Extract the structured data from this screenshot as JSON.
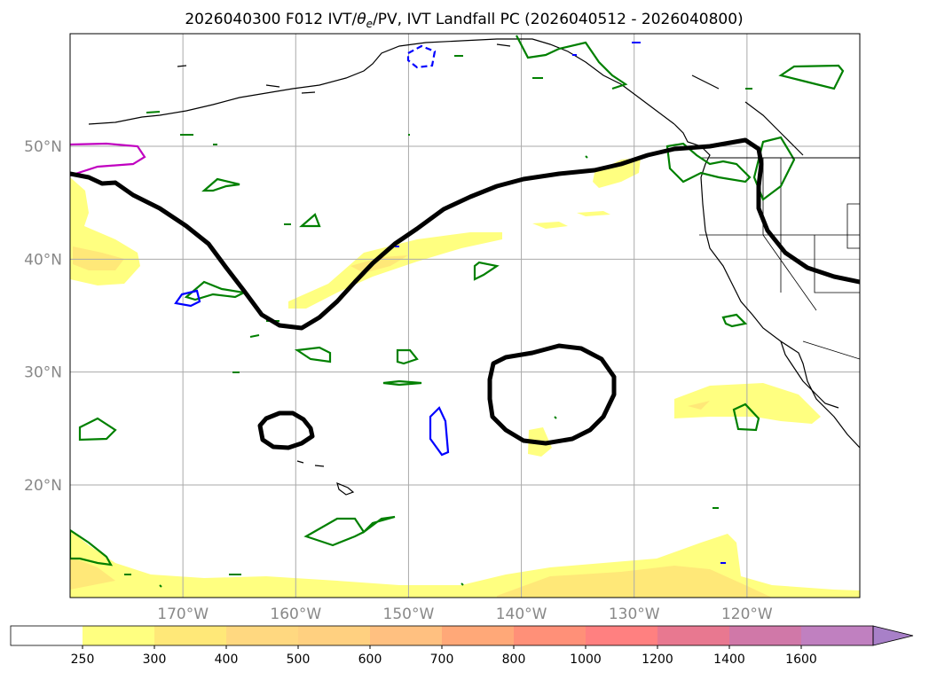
{
  "title": "2026040300 F012 IVT/θe/PV, IVT Landfall PC (2026040512 - 2026040800)",
  "title_parts": {
    "prefix": "2026040300 F012 IVT/",
    "theta": "θ",
    "sub": "e",
    "suffix": "/PV, IVT Landfall PC (2026040512 - 2026040800)"
  },
  "map": {
    "lon_range": [
      -180,
      -110
    ],
    "lat_range": [
      10,
      60
    ],
    "lat_labels": [
      {
        "lat": 50,
        "text": "50°N"
      },
      {
        "lat": 40,
        "text": "40°N"
      },
      {
        "lat": 30,
        "text": "30°N"
      },
      {
        "lat": 20,
        "text": "20°N"
      }
    ],
    "lon_labels": [
      {
        "lon": -170,
        "text": "170°W"
      },
      {
        "lon": -160,
        "text": "160°W"
      },
      {
        "lon": -150,
        "text": "150°W"
      },
      {
        "lon": -140,
        "text": "140°W"
      },
      {
        "lon": -130,
        "text": "130°W"
      },
      {
        "lon": -120,
        "text": "120°W"
      }
    ],
    "colors": {
      "ivt_250": "#ffff80",
      "ivt_300": "#ffe878",
      "pv_contour": "#008000",
      "theta_contour": "#0000ff",
      "magenta_contour": "#c000c0",
      "landfall_line": "#000000",
      "coastline": "#000000",
      "grid": "#aaaaaa"
    }
  },
  "colorbar": {
    "ticks": [
      "250",
      "300",
      "400",
      "500",
      "600",
      "700",
      "800",
      "1000",
      "1200",
      "1400",
      "1600"
    ],
    "colors": [
      "#ffffff",
      "#ffff80",
      "#ffe878",
      "#ffd880",
      "#ffd080",
      "#ffc080",
      "#ffa878",
      "#ff9078",
      "#ff8080",
      "#e87890",
      "#d078a8",
      "#c080c0",
      "#a880c8"
    ],
    "extend": "max"
  }
}
